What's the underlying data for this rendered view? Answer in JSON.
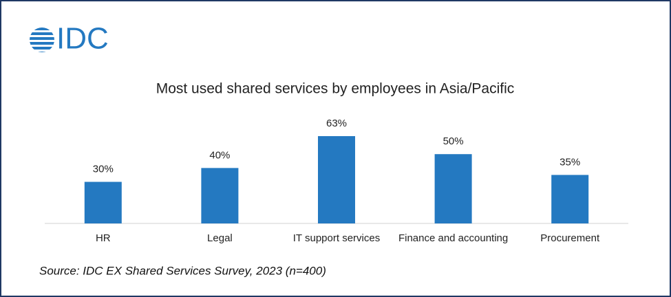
{
  "logo": "IDC",
  "chart_data": {
    "type": "bar",
    "title": "Most used shared services by employees in Asia/Pacific",
    "categories": [
      "HR",
      "Legal",
      "IT support services",
      "Finance and accounting",
      "Procurement"
    ],
    "values": [
      30,
      40,
      63,
      50,
      35
    ],
    "value_labels": [
      "30%",
      "40%",
      "63%",
      "50%",
      "35%"
    ],
    "color": "#2479c1"
  },
  "source": "Source: IDC EX Shared Services Survey, 2023 (n=400)"
}
